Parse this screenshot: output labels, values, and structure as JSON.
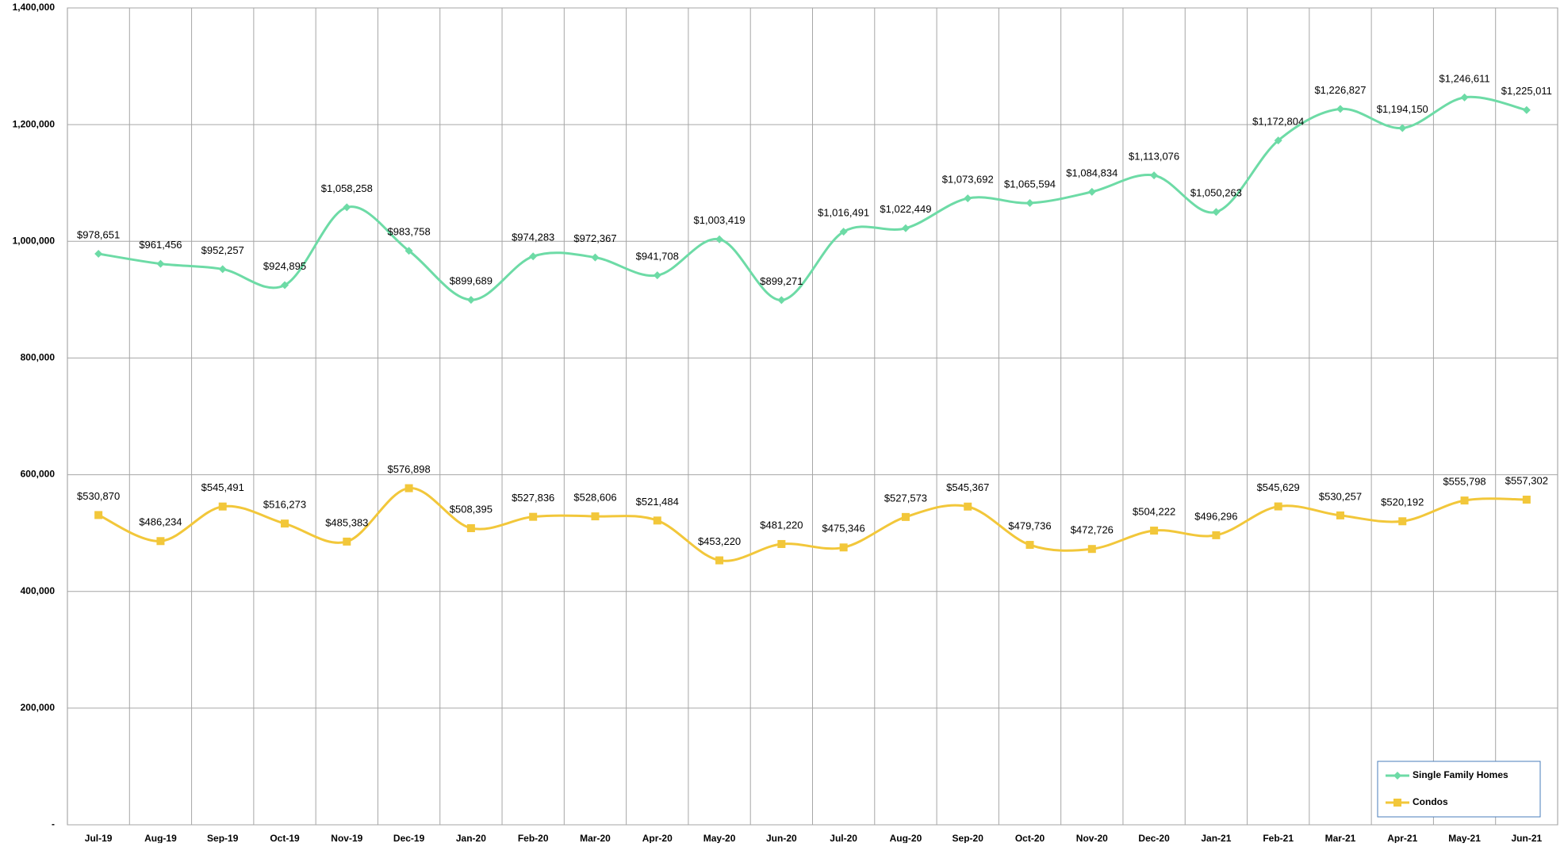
{
  "chart_data": {
    "type": "line",
    "categories": [
      "Jul-19",
      "Aug-19",
      "Sep-19",
      "Oct-19",
      "Nov-19",
      "Dec-19",
      "Jan-20",
      "Feb-20",
      "Mar-20",
      "Apr-20",
      "May-20",
      "Jun-20",
      "Jul-20",
      "Aug-20",
      "Sep-20",
      "Oct-20",
      "Nov-20",
      "Dec-20",
      "Jan-21",
      "Feb-21",
      "Mar-21",
      "Apr-21",
      "May-21",
      "Jun-21"
    ],
    "series": [
      {
        "name": "Single Family Homes",
        "color": "#6ddba6",
        "marker": "diamond",
        "values": [
          978651,
          961456,
          952257,
          924895,
          1058258,
          983758,
          899689,
          974283,
          972367,
          941708,
          1003419,
          899271,
          1016491,
          1022449,
          1073692,
          1065594,
          1084834,
          1113076,
          1050263,
          1172804,
          1226827,
          1194150,
          1246611,
          1225011
        ],
        "value_labels": [
          "$978,651",
          "$961,456",
          "$952,257",
          "$924,895",
          "$1,058,258",
          "$983,758",
          "$899,689",
          "$974,283",
          "$972,367",
          "$941,708",
          "$1,003,419",
          "$899,271",
          "$1,016,491",
          "$1,022,449",
          "$1,073,692",
          "$1,065,594",
          "$1,084,834",
          "$1,113,076",
          "$1,050,263",
          "$1,172,804",
          "$1,226,827",
          "$1,194,150",
          "$1,246,611",
          "$1,225,011"
        ]
      },
      {
        "name": "Condos",
        "color": "#f2c73a",
        "marker": "square",
        "values": [
          530870,
          486234,
          545491,
          516273,
          485383,
          576898,
          508395,
          527836,
          528606,
          521484,
          453220,
          481220,
          475346,
          527573,
          545367,
          479736,
          472726,
          504222,
          496296,
          545629,
          530257,
          520192,
          555798,
          557302
        ],
        "value_labels": [
          "$530,870",
          "$486,234",
          "$545,491",
          "$516,273",
          "$485,383",
          "$576,898",
          "$508,395",
          "$527,836",
          "$528,606",
          "$521,484",
          "$453,220",
          "$481,220",
          "$475,346",
          "$527,573",
          "$545,367",
          "$479,736",
          "$472,726",
          "$504,222",
          "$496,296",
          "$545,629",
          "$530,257",
          "$520,192",
          "$555,798",
          "$557,302"
        ]
      }
    ],
    "ylim": [
      0,
      1400000
    ],
    "yticks": [
      {
        "value": 0,
        "label": "-"
      },
      {
        "value": 200000,
        "label": "200,000"
      },
      {
        "value": 400000,
        "label": "400,000"
      },
      {
        "value": 600000,
        "label": "600,000"
      },
      {
        "value": 800000,
        "label": "800,000"
      },
      {
        "value": 1000000,
        "label": "1,000,000"
      },
      {
        "value": 1200000,
        "label": "1,200,000"
      },
      {
        "value": 1400000,
        "label": "1,400,000"
      }
    ],
    "grid": true,
    "legend": "lower right"
  }
}
